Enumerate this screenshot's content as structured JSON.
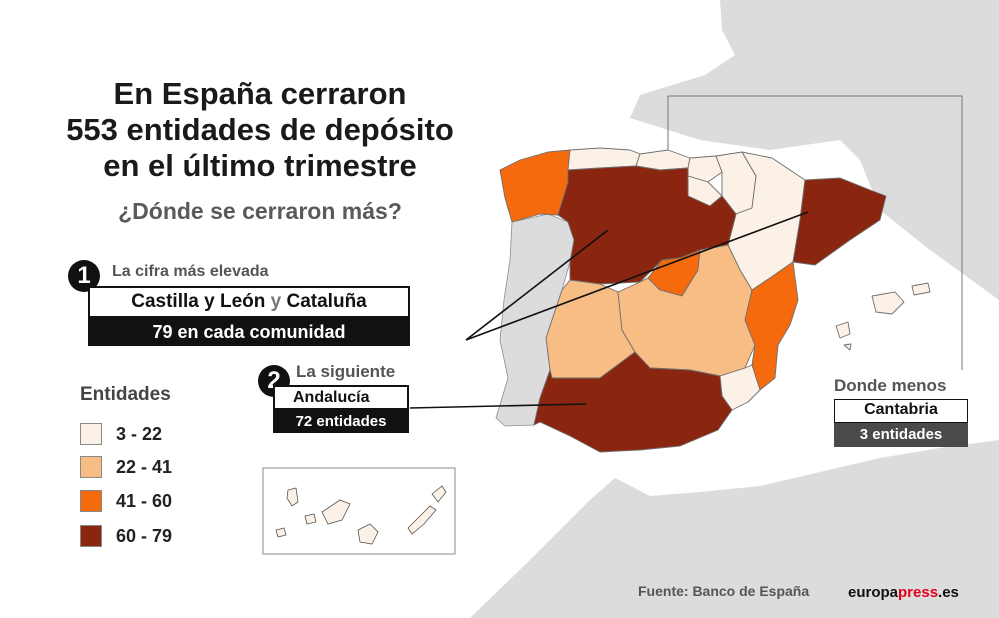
{
  "title_lines": [
    "En España cerraron",
    "553 entidades de depósito",
    "en el último trimestre"
  ],
  "subtitle": "¿Dónde se cerraron más?",
  "callouts": {
    "first": {
      "number": "1",
      "label": "La cifra más elevada",
      "region_a": "Castilla y León",
      "connector": "y",
      "region_b": "Cataluña",
      "value": "79 en cada comunidad"
    },
    "second": {
      "number": "2",
      "label": "La siguiente",
      "region": "Andalucía",
      "value": "72 entidades"
    },
    "least": {
      "label": "Donde menos",
      "region": "Cantabria",
      "value": "3 entidades"
    }
  },
  "legend": {
    "title": "Entidades",
    "items": [
      {
        "label": "3 - 22",
        "color": "#fbf1e6"
      },
      {
        "label": "22 - 41",
        "color": "#f7bd85"
      },
      {
        "label": "41 - 60",
        "color": "#f46a0c"
      },
      {
        "label": "60 - 79",
        "color": "#8a2510"
      }
    ]
  },
  "colors": {
    "sea": "#ffffff",
    "land": "#dcdcdc",
    "borders": "#8c8c8c",
    "title": "#1a1a1a",
    "brand_accent": "#e2001a"
  },
  "source": "Fuente: Banco de España",
  "brand": {
    "part1": "europa",
    "part2": "press",
    "part3": ".es"
  }
}
